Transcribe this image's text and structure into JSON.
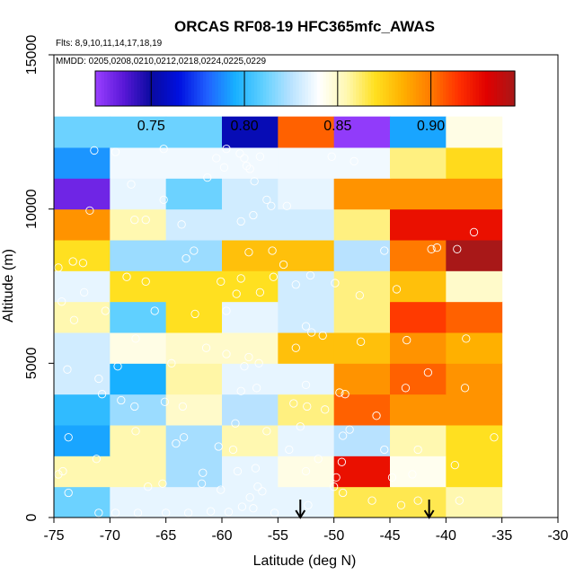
{
  "chart_data": {
    "type": "heatmap",
    "title": "ORCAS RF08-19 HFC365mfc_AWAS",
    "flights_note": "Flts: 8,9,10,11,14,17,18,19",
    "dates_note": "MMDD: 0205,0208,0210,0212,0218,0224,0225,0229",
    "xlabel": "Latitude (deg N)",
    "ylabel": "Altitude (m)",
    "xlim": [
      -75,
      -30
    ],
    "ylim": [
      0,
      15000
    ],
    "x_ticks": [
      -75,
      -70,
      -65,
      -60,
      -55,
      -50,
      -45,
      -40,
      -35,
      -30
    ],
    "x_tick_labels": [
      "-75",
      "-70",
      "-65",
      "-60",
      "-55",
      "-50",
      "-45",
      "-40",
      "-35",
      "-30"
    ],
    "y_ticks": [
      0,
      5000,
      10000,
      15000
    ],
    "y_tick_labels": [
      "0",
      "5000",
      "10000",
      "15000"
    ],
    "x_bin_edges": [
      -75,
      -70,
      -65,
      -60,
      -55,
      -50,
      -45,
      -40,
      -35
    ],
    "altitude_bin_height": 1000,
    "colorbar": {
      "range": [
        0.72,
        0.945
      ],
      "ticks": [
        0.75,
        0.8,
        0.85,
        0.9
      ],
      "tick_labels": [
        "0.75",
        "0.80",
        "0.85",
        "0.90"
      ],
      "colors": [
        "#9a40ff",
        "#5a18d8",
        "#0a0aa0",
        "#0010e0",
        "#2060ff",
        "#18b0ff",
        "#60d0ff",
        "#b8e2ff",
        "#ffffff",
        "#fff8b0",
        "#ffe020",
        "#ffb000",
        "#ff7a00",
        "#ff3000",
        "#e00000",
        "#a81818"
      ]
    },
    "cells": [
      [
        0.812,
        0.835,
        0.835,
        0.835,
        0.835,
        0.865,
        0.865,
        0.855
      ],
      [
        0.855,
        0.855,
        0.822,
        0.835,
        0.845,
        0.925,
        0.843,
        0.87
      ],
      [
        0.793,
        0.855,
        0.822,
        0.855,
        0.835,
        0.825,
        0.855,
        0.87
      ],
      [
        0.8,
        0.82,
        0.85,
        0.825,
        0.86,
        0.905,
        0.893,
        0.893
      ],
      [
        0.83,
        0.795,
        0.856,
        0.835,
        0.835,
        0.893,
        0.905,
        0.893
      ],
      [
        0.83,
        0.845,
        0.85,
        0.85,
        0.88,
        0.88,
        0.893,
        0.885
      ],
      [
        0.855,
        0.81,
        0.87,
        0.835,
        0.83,
        0.86,
        0.913,
        0.905
      ],
      [
        0.835,
        0.87,
        0.87,
        0.87,
        0.83,
        0.86,
        0.88,
        0.85
      ],
      [
        0.87,
        0.82,
        0.82,
        0.88,
        0.88,
        0.825,
        0.9,
        0.945
      ],
      [
        0.893,
        0.855,
        0.83,
        0.83,
        0.83,
        0.86,
        0.925,
        0.925
      ],
      [
        0.73,
        0.835,
        0.812,
        0.83,
        0.835,
        0.893,
        0.893,
        0.893
      ],
      [
        0.79,
        0.837,
        0.837,
        0.837,
        0.837,
        0.837,
        0.86,
        0.872
      ],
      [
        0.812,
        0.812,
        0.812,
        0.755,
        0.905,
        0.722,
        0.793,
        0.845
      ]
    ],
    "arrows": [
      {
        "lat": -53,
        "label": "low-altitude marker"
      },
      {
        "lat": -41.5,
        "label": "low-altitude marker"
      }
    ],
    "sample_points": [
      [
        -71.4,
        11900
      ],
      [
        -69.5,
        11850
      ],
      [
        -65.2,
        11950
      ],
      [
        -60.5,
        11650
      ],
      [
        -59.6,
        11950
      ],
      [
        -58.4,
        11800
      ],
      [
        -58.0,
        11650
      ],
      [
        -57.8,
        11400
      ],
      [
        -57.5,
        11300
      ],
      [
        -59.8,
        11350
      ],
      [
        -56.6,
        11700
      ],
      [
        -57.1,
        10900
      ],
      [
        -61.3,
        11020
      ],
      [
        -48.2,
        11550
      ],
      [
        -50.2,
        11700
      ],
      [
        -54.2,
        10100
      ],
      [
        -55.6,
        10100
      ],
      [
        -56.0,
        10300
      ],
      [
        -65.2,
        10300
      ],
      [
        -68.1,
        10800
      ],
      [
        -71.8,
        9950
      ],
      [
        -67.8,
        9650
      ],
      [
        -66.8,
        9650
      ],
      [
        -63.6,
        9500
      ],
      [
        -58.3,
        9600
      ],
      [
        -57.2,
        9800
      ],
      [
        -40.8,
        8750
      ],
      [
        -41.3,
        8700
      ],
      [
        -39.0,
        8700
      ],
      [
        -37.5,
        9250
      ],
      [
        -45.5,
        8650
      ],
      [
        -74.6,
        8100
      ],
      [
        -73.3,
        8300
      ],
      [
        -72.4,
        8250
      ],
      [
        -63.2,
        8400
      ],
      [
        -62.5,
        8650
      ],
      [
        -57.6,
        8600
      ],
      [
        -55.5,
        8650
      ],
      [
        -54.5,
        8200
      ],
      [
        -55.4,
        7800
      ],
      [
        -58.3,
        7750
      ],
      [
        -53.4,
        7550
      ],
      [
        -58.7,
        7250
      ],
      [
        -60.1,
        7650
      ],
      [
        -66.8,
        7650
      ],
      [
        -68.5,
        7800
      ],
      [
        -72.3,
        7300
      ],
      [
        -74.3,
        7000
      ],
      [
        -44.4,
        7400
      ],
      [
        -47.7,
        7200
      ],
      [
        -49.9,
        7600
      ],
      [
        -52.1,
        7850
      ],
      [
        -56.6,
        7300
      ],
      [
        -59.6,
        6700
      ],
      [
        -62.4,
        6600
      ],
      [
        -66.0,
        6700
      ],
      [
        -70.4,
        6700
      ],
      [
        -73.2,
        6400
      ],
      [
        -52.5,
        6200
      ],
      [
        -52.0,
        6000
      ],
      [
        -53.4,
        5500
      ],
      [
        -51.0,
        5900
      ],
      [
        -47.6,
        5700
      ],
      [
        -43.5,
        5750
      ],
      [
        -38.2,
        5800
      ],
      [
        -57.6,
        5200
      ],
      [
        -58.0,
        4900
      ],
      [
        -59.6,
        5300
      ],
      [
        -56.7,
        5000
      ],
      [
        -61.4,
        5500
      ],
      [
        -64.5,
        5000
      ],
      [
        -67.7,
        5800
      ],
      [
        -69.3,
        4900
      ],
      [
        -71.0,
        4500
      ],
      [
        -73.8,
        4800
      ],
      [
        -58.3,
        4100
      ],
      [
        -56.9,
        4200
      ],
      [
        -52.5,
        4300
      ],
      [
        -49.5,
        4050
      ],
      [
        -49.0,
        4000
      ],
      [
        -43.6,
        4200
      ],
      [
        -41.6,
        4700
      ],
      [
        -38.3,
        4200
      ],
      [
        -63.5,
        3600
      ],
      [
        -65.1,
        3750
      ],
      [
        -67.8,
        3600
      ],
      [
        -69.0,
        3800
      ],
      [
        -70.7,
        4000
      ],
      [
        -53.6,
        3700
      ],
      [
        -52.4,
        3600
      ],
      [
        -50.8,
        3500
      ],
      [
        -46.2,
        3300
      ],
      [
        -53.0,
        2950
      ],
      [
        -56.0,
        2800
      ],
      [
        -58.8,
        3050
      ],
      [
        -63.4,
        2600
      ],
      [
        -67.7,
        2800
      ],
      [
        -73.7,
        2600
      ],
      [
        -49.2,
        2650
      ],
      [
        -48.6,
        2850
      ],
      [
        -35.7,
        2600
      ],
      [
        -42.5,
        2200
      ],
      [
        -45.5,
        2200
      ],
      [
        -49.3,
        1800
      ],
      [
        -51.4,
        1900
      ],
      [
        -54.0,
        2200
      ],
      [
        -59.0,
        2200
      ],
      [
        -60.3,
        2300
      ],
      [
        -64.1,
        2400
      ],
      [
        -71.2,
        1900
      ],
      [
        -74.2,
        1500
      ],
      [
        -74.6,
        1400
      ],
      [
        -61.7,
        1450
      ],
      [
        -58.6,
        1500
      ],
      [
        -57.0,
        1600
      ],
      [
        -52.5,
        1500
      ],
      [
        -49.8,
        1300
      ],
      [
        -44.8,
        1300
      ],
      [
        -43.0,
        1400
      ],
      [
        -39.2,
        1700
      ],
      [
        -73.7,
        800
      ],
      [
        -71.0,
        150
      ],
      [
        -69.5,
        150
      ],
      [
        -67.5,
        150
      ],
      [
        -65.0,
        150
      ],
      [
        -63.0,
        150
      ],
      [
        -61.0,
        200
      ],
      [
        -59.4,
        180
      ],
      [
        -58.2,
        350
      ],
      [
        -56.4,
        850
      ],
      [
        -56.8,
        1000
      ],
      [
        -57.5,
        650
      ],
      [
        -60.1,
        900
      ],
      [
        -61.8,
        1100
      ],
      [
        -65.3,
        1100
      ],
      [
        -66.6,
        1000
      ],
      [
        -52.3,
        400
      ],
      [
        -50.0,
        1000
      ],
      [
        -49.2,
        800
      ],
      [
        -46.6,
        550
      ],
      [
        -44.0,
        400
      ],
      [
        -42.5,
        550
      ],
      [
        -38.8,
        550
      ],
      [
        -55.3,
        150
      ],
      [
        -57.2,
        300
      ]
    ]
  }
}
